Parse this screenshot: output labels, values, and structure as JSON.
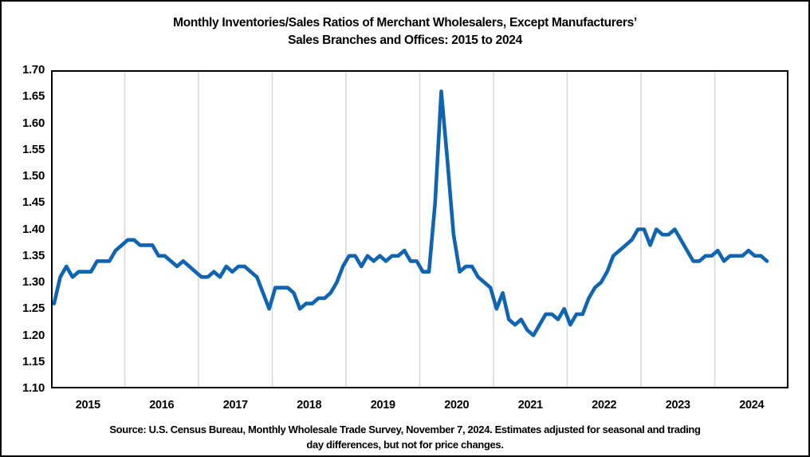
{
  "figure": {
    "title_line1": "Monthly Inventories/Sales Ratios of Merchant Wholesalers, Except Manufacturers’",
    "title_line2": "Sales Branches and Offices: 2015 to 2024",
    "source_line1": "Source: U.S. Census Bureau, Monthly Wholesale Trade Survey, November 7, 2024. Estimates adjusted for seasonal and trading",
    "source_line2": "day differences, but not for price changes."
  },
  "chart_data": {
    "type": "line",
    "title": "Monthly Inventories/Sales Ratios of Merchant Wholesalers, Except Manufacturers’ Sales Branches and Offices: 2015 to 2024",
    "xlabel": "",
    "ylabel": "",
    "ylim": [
      1.1,
      1.7
    ],
    "ytick_step": 0.05,
    "y_ticks": [
      "1.70",
      "1.65",
      "1.60",
      "1.55",
      "1.50",
      "1.45",
      "1.40",
      "1.35",
      "1.30",
      "1.25",
      "1.20",
      "1.15",
      "1.10"
    ],
    "x_year_labels": [
      "2015",
      "2016",
      "2017",
      "2018",
      "2019",
      "2020",
      "2021",
      "2022",
      "2023",
      "2024"
    ],
    "grid": "vertical gridlines at year boundaries",
    "legend": "none",
    "line_color": "#0f65b2",
    "gridline_color": "#d9d9d9",
    "border_color": "#000000",
    "series": [
      {
        "name": "Inventories/Sales ratio",
        "frequency": "monthly",
        "start": "2015-01",
        "end": "2024-09",
        "values": [
          1.26,
          1.31,
          1.33,
          1.31,
          1.32,
          1.32,
          1.32,
          1.34,
          1.34,
          1.34,
          1.36,
          1.37,
          1.38,
          1.38,
          1.37,
          1.37,
          1.37,
          1.35,
          1.35,
          1.34,
          1.33,
          1.34,
          1.33,
          1.32,
          1.31,
          1.31,
          1.32,
          1.31,
          1.33,
          1.32,
          1.33,
          1.33,
          1.32,
          1.31,
          1.28,
          1.25,
          1.29,
          1.29,
          1.29,
          1.28,
          1.25,
          1.26,
          1.26,
          1.27,
          1.27,
          1.28,
          1.3,
          1.33,
          1.35,
          1.35,
          1.33,
          1.35,
          1.34,
          1.35,
          1.34,
          1.35,
          1.35,
          1.36,
          1.34,
          1.34,
          1.32,
          1.32,
          1.45,
          1.66,
          1.53,
          1.39,
          1.32,
          1.33,
          1.33,
          1.31,
          1.3,
          1.29,
          1.25,
          1.28,
          1.23,
          1.22,
          1.23,
          1.21,
          1.2,
          1.22,
          1.24,
          1.24,
          1.23,
          1.25,
          1.22,
          1.24,
          1.24,
          1.27,
          1.29,
          1.3,
          1.32,
          1.35,
          1.36,
          1.37,
          1.38,
          1.4,
          1.4,
          1.37,
          1.4,
          1.39,
          1.39,
          1.4,
          1.38,
          1.36,
          1.34,
          1.34,
          1.35,
          1.35,
          1.36,
          1.34,
          1.35,
          1.35,
          1.35,
          1.36,
          1.35,
          1.35,
          1.34
        ]
      }
    ]
  }
}
